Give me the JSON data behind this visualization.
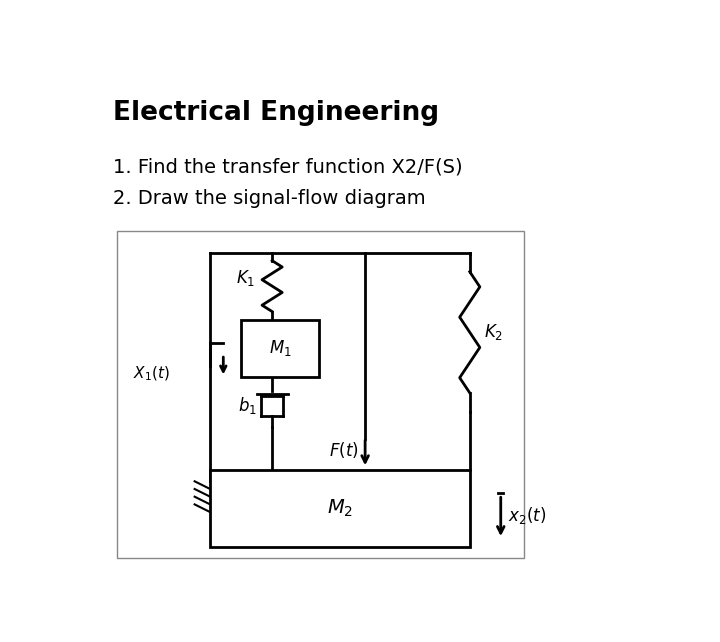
{
  "title": "Electrical Engineering",
  "item1": "1. Find the transfer function X2/F(S)",
  "item2": "2. Draw the signal-flow diagram",
  "bg_color": "#ffffff",
  "line_color": "#000000",
  "title_fontsize": 19,
  "text_fontsize": 14
}
